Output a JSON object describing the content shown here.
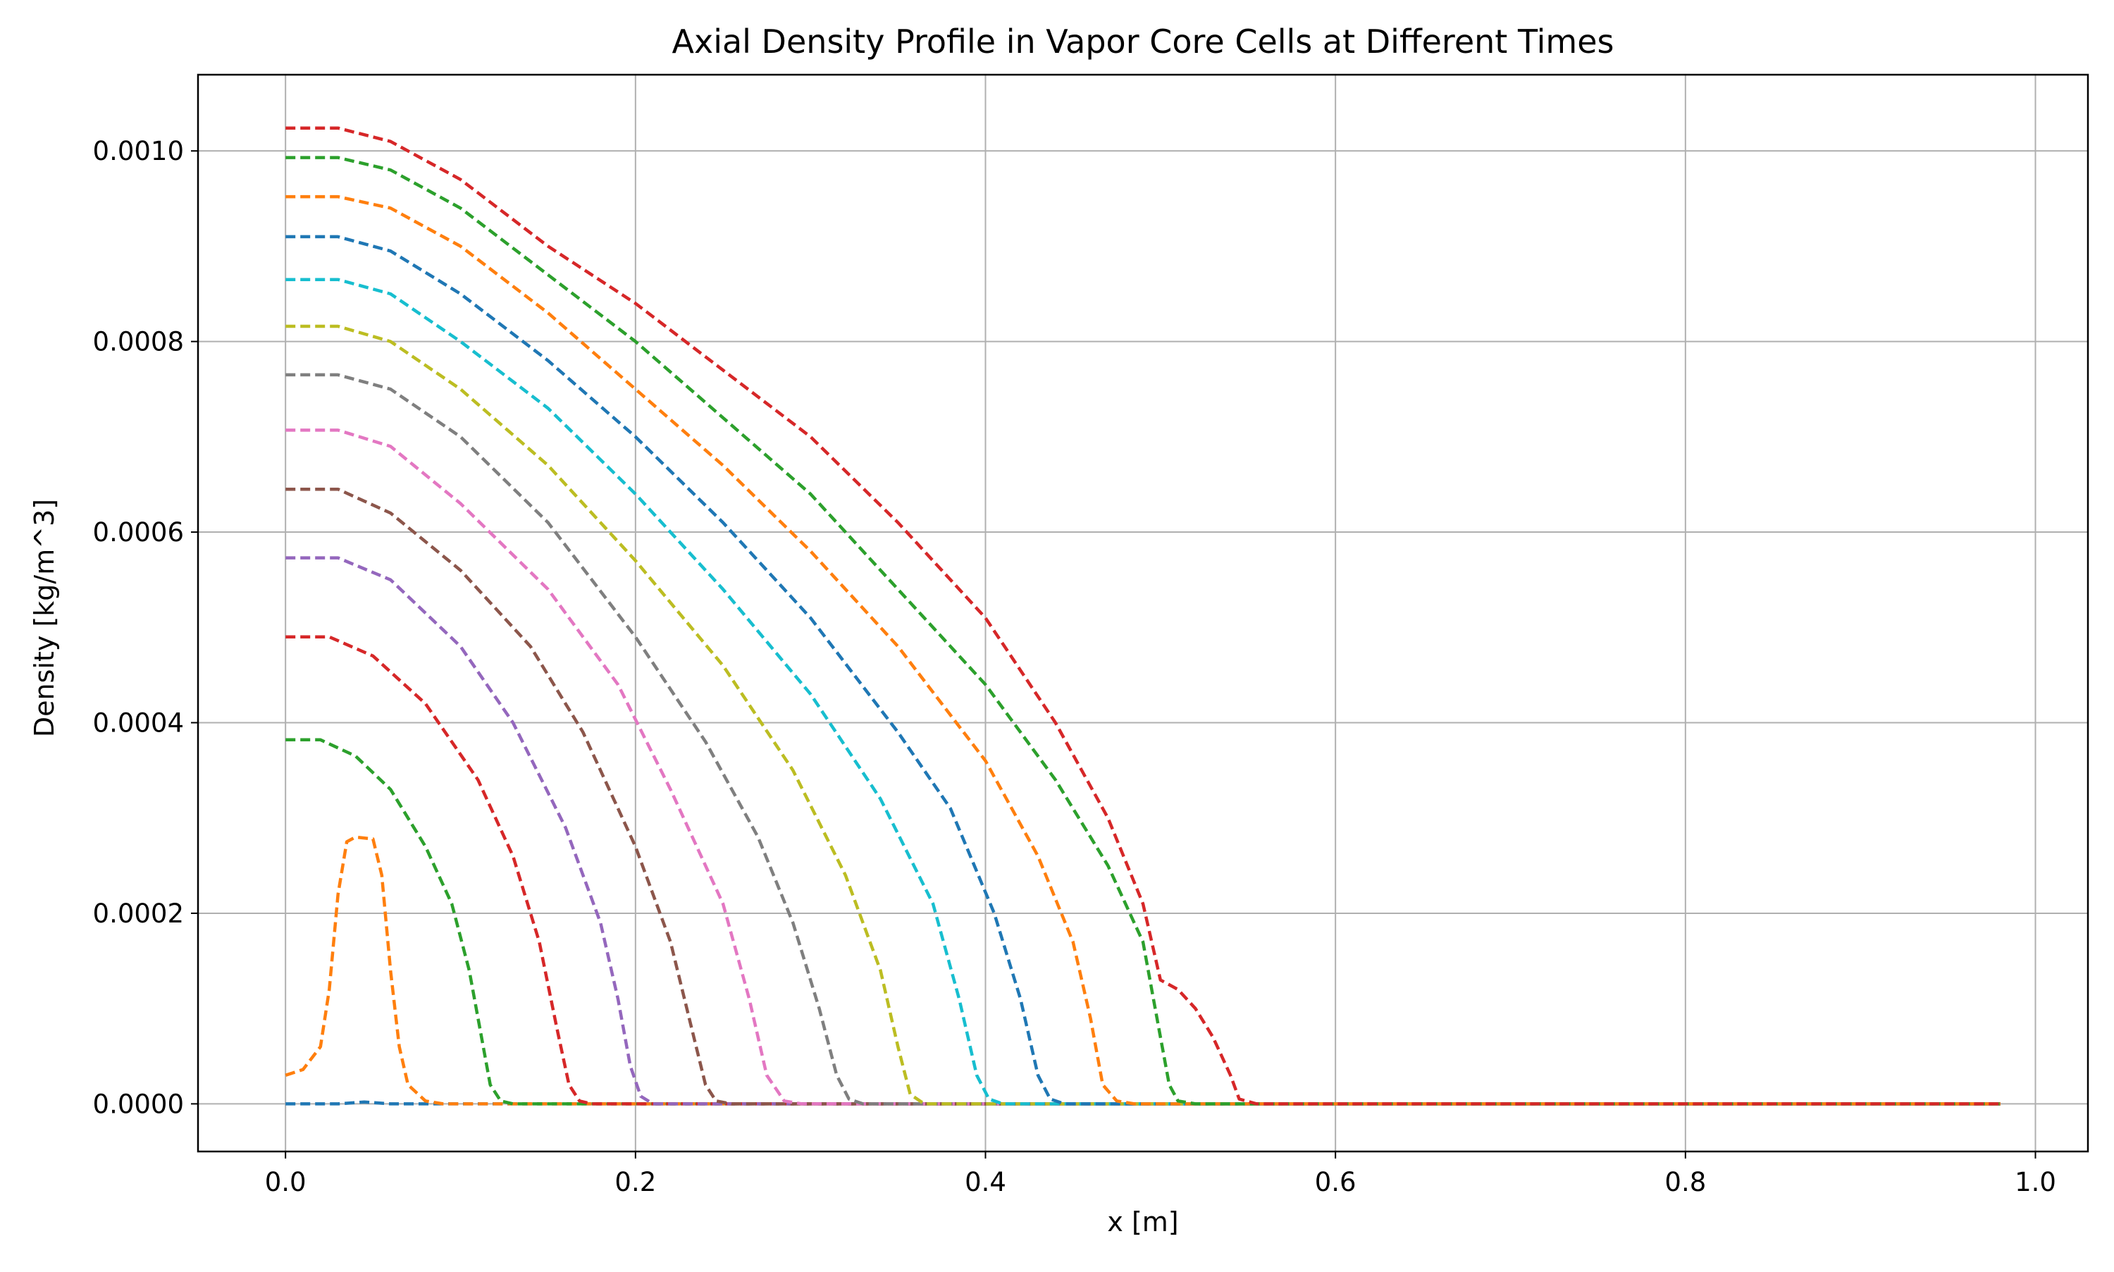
{
  "chart_data": {
    "type": "line",
    "title": "Axial Density Profile in Vapor Core Cells at Different Times",
    "xlabel": "x [m]",
    "ylabel": "Density [kg/m^3]",
    "xlim": [
      -0.05,
      1.03
    ],
    "ylim": [
      -5e-05,
      0.00108
    ],
    "x_ticks": [
      0.0,
      0.2,
      0.4,
      0.6,
      0.8,
      1.0
    ],
    "x_tick_labels": [
      "0.0",
      "0.2",
      "0.4",
      "0.6",
      "0.8",
      "1.0"
    ],
    "y_ticks": [
      0.0,
      0.0002,
      0.0004,
      0.0006,
      0.0008,
      0.001
    ],
    "y_tick_labels": [
      "0.0000",
      "0.0002",
      "0.0004",
      "0.0006",
      "0.0008",
      "0.0010"
    ],
    "grid": true,
    "line_style": "dashed",
    "series": [
      {
        "color": "#1f77b4",
        "values": [
          [
            0.0,
            0.0
          ],
          [
            0.03,
            0.0
          ],
          [
            0.045,
            2e-06
          ],
          [
            0.06,
            0.0
          ],
          [
            0.98,
            0.0
          ]
        ]
      },
      {
        "color": "#ff7f0e",
        "values": [
          [
            0.0,
            3e-05
          ],
          [
            0.01,
            3.6e-05
          ],
          [
            0.02,
            6e-05
          ],
          [
            0.025,
            0.00012
          ],
          [
            0.03,
            0.00022
          ],
          [
            0.035,
            0.000275
          ],
          [
            0.04,
            0.00028
          ],
          [
            0.05,
            0.000278
          ],
          [
            0.055,
            0.00024
          ],
          [
            0.06,
            0.00014
          ],
          [
            0.065,
            6e-05
          ],
          [
            0.07,
            2e-05
          ],
          [
            0.08,
            3e-06
          ],
          [
            0.09,
            0.0
          ],
          [
            0.98,
            0.0
          ]
        ]
      },
      {
        "color": "#2ca02c",
        "values": [
          [
            0.0,
            0.000382
          ],
          [
            0.02,
            0.000382
          ],
          [
            0.04,
            0.000365
          ],
          [
            0.06,
            0.00033
          ],
          [
            0.08,
            0.00027
          ],
          [
            0.095,
            0.00021
          ],
          [
            0.105,
            0.00014
          ],
          [
            0.112,
            7e-05
          ],
          [
            0.117,
            2e-05
          ],
          [
            0.123,
            3e-06
          ],
          [
            0.13,
            0.0
          ],
          [
            0.98,
            0.0
          ]
        ]
      },
      {
        "color": "#d62728",
        "values": [
          [
            0.0,
            0.00049
          ],
          [
            0.025,
            0.00049
          ],
          [
            0.05,
            0.00047
          ],
          [
            0.08,
            0.00042
          ],
          [
            0.11,
            0.00034
          ],
          [
            0.13,
            0.00026
          ],
          [
            0.145,
            0.00017
          ],
          [
            0.155,
            8e-05
          ],
          [
            0.162,
            2e-05
          ],
          [
            0.168,
            3e-06
          ],
          [
            0.175,
            0.0
          ],
          [
            0.98,
            0.0
          ]
        ]
      },
      {
        "color": "#9467bd",
        "values": [
          [
            0.0,
            0.000573
          ],
          [
            0.03,
            0.000573
          ],
          [
            0.06,
            0.00055
          ],
          [
            0.1,
            0.00048
          ],
          [
            0.13,
            0.0004
          ],
          [
            0.16,
            0.00029
          ],
          [
            0.18,
            0.00019
          ],
          [
            0.19,
            0.00011
          ],
          [
            0.197,
            4e-05
          ],
          [
            0.203,
            8e-06
          ],
          [
            0.21,
            0.0
          ],
          [
            0.98,
            0.0
          ]
        ]
      },
      {
        "color": "#8c564b",
        "values": [
          [
            0.0,
            0.000645
          ],
          [
            0.03,
            0.000645
          ],
          [
            0.06,
            0.00062
          ],
          [
            0.1,
            0.00056
          ],
          [
            0.14,
            0.00048
          ],
          [
            0.17,
            0.00039
          ],
          [
            0.2,
            0.00027
          ],
          [
            0.22,
            0.00017
          ],
          [
            0.232,
            8e-05
          ],
          [
            0.24,
            2e-05
          ],
          [
            0.246,
            3e-06
          ],
          [
            0.255,
            0.0
          ],
          [
            0.98,
            0.0
          ]
        ]
      },
      {
        "color": "#e377c2",
        "values": [
          [
            0.0,
            0.000707
          ],
          [
            0.03,
            0.000707
          ],
          [
            0.06,
            0.00069
          ],
          [
            0.1,
            0.00063
          ],
          [
            0.15,
            0.00054
          ],
          [
            0.19,
            0.00044
          ],
          [
            0.22,
            0.00033
          ],
          [
            0.25,
            0.00021
          ],
          [
            0.265,
            0.00011
          ],
          [
            0.275,
            3e-05
          ],
          [
            0.285,
            3e-06
          ],
          [
            0.295,
            0.0
          ],
          [
            0.98,
            0.0
          ]
        ]
      },
      {
        "color": "#7f7f7f",
        "values": [
          [
            0.0,
            0.000765
          ],
          [
            0.03,
            0.000765
          ],
          [
            0.06,
            0.00075
          ],
          [
            0.1,
            0.0007
          ],
          [
            0.15,
            0.00061
          ],
          [
            0.2,
            0.00049
          ],
          [
            0.24,
            0.00038
          ],
          [
            0.27,
            0.00028
          ],
          [
            0.29,
            0.00019
          ],
          [
            0.305,
            0.0001
          ],
          [
            0.315,
            3e-05
          ],
          [
            0.322,
            5e-06
          ],
          [
            0.33,
            0.0
          ],
          [
            0.98,
            0.0
          ]
        ]
      },
      {
        "color": "#bcbd22",
        "values": [
          [
            0.0,
            0.000816
          ],
          [
            0.03,
            0.000816
          ],
          [
            0.06,
            0.0008
          ],
          [
            0.1,
            0.00075
          ],
          [
            0.15,
            0.00067
          ],
          [
            0.2,
            0.00057
          ],
          [
            0.25,
            0.00046
          ],
          [
            0.29,
            0.00035
          ],
          [
            0.32,
            0.00024
          ],
          [
            0.34,
            0.00014
          ],
          [
            0.35,
            6e-05
          ],
          [
            0.357,
            1e-05
          ],
          [
            0.365,
            0.0
          ],
          [
            0.98,
            0.0
          ]
        ]
      },
      {
        "color": "#17becf",
        "values": [
          [
            0.0,
            0.000865
          ],
          [
            0.03,
            0.000865
          ],
          [
            0.06,
            0.00085
          ],
          [
            0.1,
            0.0008
          ],
          [
            0.15,
            0.00073
          ],
          [
            0.2,
            0.00064
          ],
          [
            0.25,
            0.00054
          ],
          [
            0.3,
            0.00043
          ],
          [
            0.34,
            0.00032
          ],
          [
            0.37,
            0.00021
          ],
          [
            0.385,
            0.00011
          ],
          [
            0.395,
            3e-05
          ],
          [
            0.402,
            5e-06
          ],
          [
            0.41,
            0.0
          ],
          [
            0.98,
            0.0
          ]
        ]
      },
      {
        "color": "#1f77b4",
        "values": [
          [
            0.0,
            0.00091
          ],
          [
            0.03,
            0.00091
          ],
          [
            0.06,
            0.000895
          ],
          [
            0.1,
            0.00085
          ],
          [
            0.15,
            0.00078
          ],
          [
            0.2,
            0.0007
          ],
          [
            0.25,
            0.00061
          ],
          [
            0.3,
            0.00051
          ],
          [
            0.35,
            0.00039
          ],
          [
            0.38,
            0.00031
          ],
          [
            0.405,
            0.0002
          ],
          [
            0.42,
            0.00011
          ],
          [
            0.43,
            3e-05
          ],
          [
            0.437,
            5e-06
          ],
          [
            0.445,
            0.0
          ],
          [
            0.98,
            0.0
          ]
        ]
      },
      {
        "color": "#ff7f0e",
        "values": [
          [
            0.0,
            0.000952
          ],
          [
            0.03,
            0.000952
          ],
          [
            0.06,
            0.00094
          ],
          [
            0.1,
            0.0009
          ],
          [
            0.15,
            0.00083
          ],
          [
            0.2,
            0.00075
          ],
          [
            0.25,
            0.00067
          ],
          [
            0.3,
            0.00058
          ],
          [
            0.35,
            0.00048
          ],
          [
            0.4,
            0.00036
          ],
          [
            0.43,
            0.00026
          ],
          [
            0.45,
            0.00017
          ],
          [
            0.46,
            9e-05
          ],
          [
            0.467,
            2e-05
          ],
          [
            0.475,
            3e-06
          ],
          [
            0.485,
            0.0
          ],
          [
            0.98,
            0.0
          ]
        ]
      },
      {
        "color": "#2ca02c",
        "values": [
          [
            0.0,
            0.000993
          ],
          [
            0.03,
            0.000993
          ],
          [
            0.06,
            0.00098
          ],
          [
            0.1,
            0.00094
          ],
          [
            0.15,
            0.00087
          ],
          [
            0.2,
            0.0008
          ],
          [
            0.25,
            0.00072
          ],
          [
            0.3,
            0.00064
          ],
          [
            0.35,
            0.00054
          ],
          [
            0.4,
            0.00044
          ],
          [
            0.44,
            0.00034
          ],
          [
            0.47,
            0.00025
          ],
          [
            0.49,
            0.00017
          ],
          [
            0.5,
            7e-05
          ],
          [
            0.505,
            2e-05
          ],
          [
            0.51,
            3e-06
          ],
          [
            0.52,
            0.0
          ],
          [
            0.98,
            0.0
          ]
        ]
      },
      {
        "color": "#d62728",
        "values": [
          [
            0.0,
            0.001024
          ],
          [
            0.03,
            0.001024
          ],
          [
            0.06,
            0.00101
          ],
          [
            0.1,
            0.00097
          ],
          [
            0.15,
            0.0009
          ],
          [
            0.2,
            0.00084
          ],
          [
            0.25,
            0.00077
          ],
          [
            0.3,
            0.0007
          ],
          [
            0.35,
            0.00061
          ],
          [
            0.4,
            0.00051
          ],
          [
            0.44,
            0.0004
          ],
          [
            0.47,
            0.0003
          ],
          [
            0.49,
            0.00021
          ],
          [
            0.5,
            0.00013
          ],
          [
            0.51,
            0.00012
          ],
          [
            0.52,
            0.0001
          ],
          [
            0.53,
            7e-05
          ],
          [
            0.54,
            3e-05
          ],
          [
            0.545,
            5e-06
          ],
          [
            0.555,
            0.0
          ],
          [
            0.98,
            0.0
          ]
        ]
      }
    ]
  }
}
